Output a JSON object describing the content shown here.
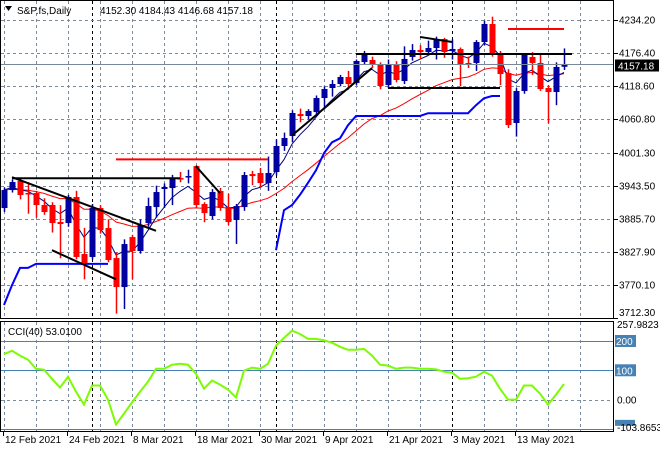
{
  "header": {
    "symbol": "S&P.fs,Daily",
    "ohlc_text": "4152.30 4184.43 4146.68 4157.18",
    "menu_icon": "triangle-down-icon"
  },
  "colors": {
    "bull": "#0000a0",
    "bear": "#ff0000",
    "fast_ma": "#000080",
    "slow_ma": "#ff0000",
    "support_line": "#0000ff",
    "cci": "#7cfc00",
    "level": "#4682b4",
    "grid": "#7b8b9a",
    "price_line": "#778899"
  },
  "chart_data": [
    {
      "type": "candlestick",
      "title": "S&P.fs,Daily",
      "ylim": [
        3712.3,
        4269.2
      ],
      "grid": true,
      "y_ticks": [
        "4234.20",
        "4176.40",
        "4118.60",
        "4060.80",
        "4001.30",
        "3943.50",
        "3885.70",
        "3827.90",
        "3770.10",
        "3712.30"
      ],
      "current_price": "4157.18",
      "x_ticks": [
        {
          "label": "12 Feb 2021",
          "date": "2021-02-12"
        },
        {
          "label": "24 Feb 2021",
          "date": "2021-02-24"
        },
        {
          "label": "8 Mar 2021",
          "date": "2021-03-08"
        },
        {
          "label": "18 Mar 2021",
          "date": "2021-03-18"
        },
        {
          "label": "30 Mar 2021",
          "date": "2021-03-30"
        },
        {
          "label": "9 Apr 2021",
          "date": "2021-04-09"
        },
        {
          "label": "21 Apr 2021",
          "date": "2021-04-21"
        },
        {
          "label": "3 May 2021",
          "date": "2021-05-03"
        },
        {
          "label": "13 May 2021",
          "date": "2021-05-13"
        }
      ],
      "month_separators": [
        "2021-03-01",
        "2021-04-01",
        "2021-05-03"
      ],
      "dates": [
        "2021-02-12",
        "2021-02-15",
        "2021-02-16",
        "2021-02-17",
        "2021-02-18",
        "2021-02-19",
        "2021-02-22",
        "2021-02-23",
        "2021-02-24",
        "2021-02-25",
        "2021-02-26",
        "2021-03-01",
        "2021-03-02",
        "2021-03-03",
        "2021-03-04",
        "2021-03-05",
        "2021-03-08",
        "2021-03-09",
        "2021-03-10",
        "2021-03-11",
        "2021-03-12",
        "2021-03-15",
        "2021-03-16",
        "2021-03-17",
        "2021-03-18",
        "2021-03-19",
        "2021-03-22",
        "2021-03-23",
        "2021-03-24",
        "2021-03-25",
        "2021-03-26",
        "2021-03-29",
        "2021-03-30",
        "2021-03-31",
        "2021-04-01",
        "2021-04-02",
        "2021-04-05",
        "2021-04-06",
        "2021-04-07",
        "2021-04-08",
        "2021-04-09",
        "2021-04-12",
        "2021-04-13",
        "2021-04-14",
        "2021-04-15",
        "2021-04-16",
        "2021-04-19",
        "2021-04-20",
        "2021-04-21",
        "2021-04-22",
        "2021-04-23",
        "2021-04-26",
        "2021-04-27",
        "2021-04-28",
        "2021-04-29",
        "2021-04-30",
        "2021-05-03",
        "2021-05-04",
        "2021-05-05",
        "2021-05-06",
        "2021-05-07",
        "2021-05-10",
        "2021-05-11",
        "2021-05-12",
        "2021-05-13",
        "2021-05-14",
        "2021-05-17",
        "2021-05-18",
        "2021-05-19",
        "2021-05-20",
        "2021-05-21"
      ],
      "ohlc": [
        [
          3904.9,
          3941,
          3898,
          3936.4
        ],
        [
          3936.4,
          3955,
          3932,
          3950.4
        ],
        [
          3952.2,
          3956,
          3920,
          3927.7
        ],
        [
          3931.2,
          3950,
          3895,
          3929.4
        ],
        [
          3931.2,
          3935,
          3888,
          3910.2
        ],
        [
          3910.2,
          3922,
          3893,
          3897.9
        ],
        [
          3910.2,
          3915,
          3862,
          3878.6
        ],
        [
          3880.4,
          3910,
          3817,
          3876.9
        ],
        [
          3878.6,
          3928,
          3872,
          3924.2
        ],
        [
          3924.2,
          3935,
          3815,
          3819.1
        ],
        [
          3824.4,
          3870,
          3780,
          3808.6
        ],
        [
          3819.1,
          3912,
          3815,
          3904.9
        ],
        [
          3904.9,
          3910,
          3860,
          3866.3
        ],
        [
          3869.8,
          3885,
          3810,
          3813.8
        ],
        [
          3817.3,
          3827,
          3720,
          3766.5
        ],
        [
          3766.5,
          3850,
          3728,
          3841.8
        ],
        [
          3854.1,
          3858,
          3780,
          3829.6
        ],
        [
          3829.6,
          3885,
          3825,
          3875.1
        ],
        [
          3878.6,
          3923,
          3872,
          3908.4
        ],
        [
          3906.6,
          3944,
          3888,
          3932.9
        ],
        [
          3938.2,
          3948,
          3905,
          3941.7
        ],
        [
          3939.9,
          3963,
          3910,
          3957.4
        ],
        [
          3957.4,
          3968,
          3950,
          3955.7
        ],
        [
          3959.2,
          3972,
          3948,
          3960.9
        ],
        [
          3978.4,
          3980,
          3905,
          3910.2
        ],
        [
          3911.9,
          3915,
          3880,
          3896.1
        ],
        [
          3890.9,
          3938,
          3885,
          3932.9
        ],
        [
          3934.7,
          3940,
          3900,
          3904.9
        ],
        [
          3906.6,
          3930,
          3875,
          3880.4
        ],
        [
          3883.9,
          3912,
          3842,
          3908.4
        ],
        [
          3906.6,
          3968,
          3900,
          3962.7
        ],
        [
          3964.4,
          3970,
          3945,
          3960.9
        ],
        [
          3966.2,
          3975,
          3940,
          3948.7
        ],
        [
          3948.7,
          3995,
          3935,
          3966.2
        ],
        [
          3967.9,
          4025,
          3962,
          4013.5
        ],
        [
          4013.5,
          4037,
          4005,
          4027.5
        ],
        [
          4031.0,
          4076,
          4020,
          4071.3
        ],
        [
          4069.5,
          4079,
          4055,
          4066.0
        ],
        [
          4066.0,
          4078,
          4060,
          4074.8
        ],
        [
          4073.0,
          4102,
          4070,
          4097.5
        ],
        [
          4097.5,
          4118,
          4080,
          4113.3
        ],
        [
          4115.1,
          4129,
          4100,
          4122.1
        ],
        [
          4122.1,
          4138,
          4118,
          4134.3
        ],
        [
          4134.3,
          4145,
          4115,
          4122.1
        ],
        [
          4123.8,
          4165,
          4120,
          4162.4
        ],
        [
          4160.6,
          4180,
          4157,
          4172.9
        ],
        [
          4164.1,
          4170,
          4150,
          4155.4
        ],
        [
          4157.1,
          4160,
          4113,
          4118.6
        ],
        [
          4120.3,
          4165,
          4115,
          4157.1
        ],
        [
          4157.1,
          4162,
          4125,
          4129.1
        ],
        [
          4127.3,
          4188,
          4122,
          4165.9
        ],
        [
          4169.4,
          4192,
          4163,
          4181.6
        ],
        [
          4181.6,
          4190,
          4165,
          4178.1
        ],
        [
          4178.1,
          4198,
          4172,
          4185.1
        ],
        [
          4185.1,
          4205,
          4165,
          4199.1
        ],
        [
          4200.9,
          4203,
          4168,
          4178.1
        ],
        [
          4179.9,
          4200,
          4165,
          4183.4
        ],
        [
          4183.4,
          4186,
          4118,
          4155.4
        ],
        [
          4158.9,
          4170,
          4150,
          4157.1
        ],
        [
          4158.9,
          4199,
          4145,
          4195.6
        ],
        [
          4195.6,
          4233,
          4190,
          4227.2
        ],
        [
          4227.2,
          4240,
          4170,
          4174.6
        ],
        [
          4176.4,
          4180,
          4120,
          4139.6
        ],
        [
          4141.3,
          4148,
          4045,
          4050.3
        ],
        [
          4053.8,
          4115,
          4030,
          4109.8
        ],
        [
          4109.8,
          4176,
          4105,
          4172.9
        ],
        [
          4169.4,
          4178,
          4138,
          4158.9
        ],
        [
          4158.9,
          4176,
          4110,
          4113.3
        ],
        [
          4115.1,
          4120,
          4053,
          4108.1
        ],
        [
          4108.1,
          4160,
          4085,
          4151.9
        ],
        [
          4152.3,
          4184.43,
          4146.68,
          4157.18
        ]
      ],
      "fast_ma_period": 5,
      "slow_ma_period": 21,
      "support_line": [
        3735,
        3770,
        3800,
        3800,
        3807,
        3807,
        3807,
        3807,
        3807,
        3807,
        3807,
        3807,
        3807,
        3807,
        null,
        null,
        null,
        null,
        null,
        null,
        null,
        null,
        null,
        null,
        null,
        null,
        null,
        null,
        null,
        null,
        null,
        null,
        null,
        null,
        3831,
        3901,
        3910,
        3928,
        3949,
        3971,
        4001,
        4020,
        4027,
        4050,
        4066,
        4066,
        4066,
        4066,
        4066,
        4066,
        4066,
        4066,
        4066,
        4071,
        4071,
        4071,
        4071,
        4071,
        4071,
        4085,
        4097,
        4101,
        4101,
        null,
        null,
        null,
        null,
        null,
        null,
        null,
        null
      ],
      "trendlines": [
        {
          "color": "#000000",
          "from": [
            "2021-02-15",
            3957
          ],
          "to": [
            "2021-03-16",
            3957
          ]
        },
        {
          "color": "#000000",
          "from": [
            "2021-02-15",
            3959
          ],
          "to": [
            "2021-03-11",
            3865
          ]
        },
        {
          "color": "#000000",
          "from": [
            "2021-02-22",
            3831
          ],
          "to": [
            "2021-03-04",
            3780
          ]
        },
        {
          "color": "#ff0000",
          "from": [
            "2021-03-04",
            3990
          ],
          "to": [
            "2021-03-31",
            3990
          ]
        },
        {
          "color": "#000000",
          "from": [
            "2021-03-18",
            3978
          ],
          "to": [
            "2021-03-23",
            3931
          ]
        },
        {
          "color": "#000000",
          "from": [
            "2021-04-05",
            4032
          ],
          "to": [
            "2021-04-19",
            4150
          ]
        },
        {
          "color": "#000000",
          "from": [
            "2021-04-15",
            4174.6
          ],
          "to": [
            "2021-05-21",
            4174.6
          ],
          "extend": true
        },
        {
          "color": "#000000",
          "from": [
            "2021-04-21",
            4115
          ],
          "to": [
            "2021-05-11",
            4115
          ]
        },
        {
          "color": "#000000",
          "from": [
            "2021-04-27",
            4204.5
          ],
          "to": [
            "2021-05-03",
            4195.6
          ]
        },
        {
          "color": "#ff0000",
          "from": [
            "2021-05-12",
            4218.4
          ],
          "to": [
            "2021-05-21",
            4218.4
          ]
        }
      ]
    },
    {
      "type": "line",
      "title": "CCI(40) 53.0100",
      "ylim": [
        -103.8653,
        257.9823
      ],
      "y_ticks": [
        "257.9823",
        "200",
        "100",
        "0.00",
        "-103.8653"
      ],
      "levels": [
        200,
        100,
        -100
      ],
      "zero_line": 0,
      "values": [
        155,
        167,
        150,
        136,
        105,
        102,
        71,
        41,
        78,
        27,
        -17,
        48,
        48,
        0,
        -85,
        -48,
        -10,
        27,
        61,
        105,
        105,
        119,
        122,
        119,
        88,
        37,
        65,
        51,
        34,
        7,
        99,
        109,
        105,
        122,
        184,
        211,
        235,
        224,
        207,
        207,
        202,
        194,
        180,
        170,
        170,
        173,
        150,
        119,
        116,
        105,
        109,
        109,
        105,
        105,
        103,
        95,
        92,
        71,
        73,
        78,
        95,
        82,
        37,
        0,
        0,
        48,
        48,
        20,
        -17,
        17,
        53
      ]
    }
  ]
}
